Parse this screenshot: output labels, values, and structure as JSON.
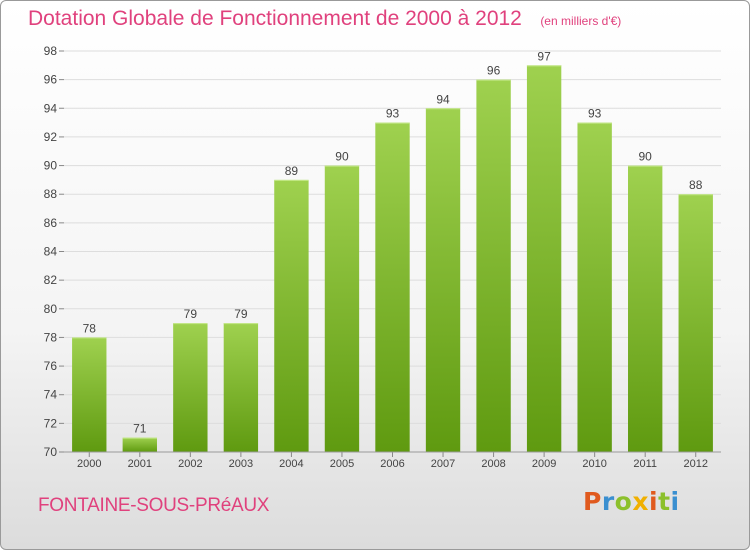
{
  "header": {
    "title": "Dotation Globale de Fonctionnement de 2000 à 2012",
    "subtitle": "(en milliers d'€)"
  },
  "footer": {
    "commune": "FONTAINE-SOUS-PRéAUX",
    "brand_letters": [
      "P",
      "r",
      "o",
      "x",
      "i",
      "t",
      "i"
    ]
  },
  "colors": {
    "title": "#e0417d",
    "bar_top": "#9fd14f",
    "bar_bottom": "#5f9a10",
    "grid": "#dddddd",
    "axis_text": "#444444"
  },
  "chart_data": {
    "type": "bar",
    "categories": [
      "2000",
      "2001",
      "2002",
      "2003",
      "2004",
      "2005",
      "2006",
      "2007",
      "2008",
      "2009",
      "2010",
      "2011",
      "2012"
    ],
    "values": [
      78,
      71,
      79,
      79,
      89,
      90,
      93,
      94,
      96,
      97,
      93,
      90,
      88
    ],
    "data_labels": [
      "78",
      "71",
      "79",
      "79",
      "89",
      "90",
      "93",
      "94",
      "96",
      "97",
      "93",
      "90",
      "88"
    ],
    "title": "Dotation Globale de Fonctionnement de 2000 à 2012",
    "subtitle": "(en milliers d'€)",
    "xlabel": "",
    "ylabel": "",
    "ylim": [
      70,
      98
    ],
    "yticks": [
      70,
      72,
      74,
      76,
      78,
      80,
      82,
      84,
      86,
      88,
      90,
      92,
      94,
      96,
      98
    ],
    "grid": true
  }
}
